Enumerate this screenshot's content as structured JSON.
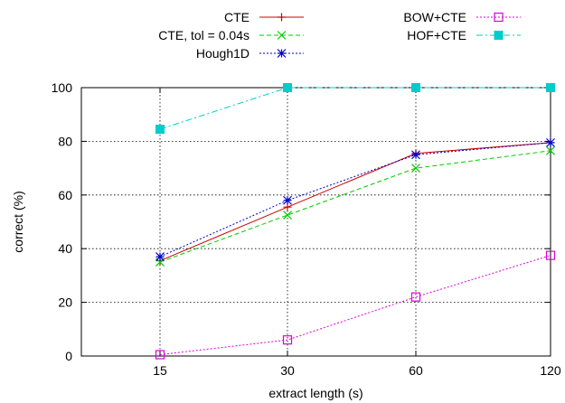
{
  "chart_data": {
    "type": "line",
    "title": "",
    "xlabel": "extract length (s)",
    "ylabel": "correct (%)",
    "categories": [
      "15",
      "30",
      "60",
      "120"
    ],
    "yticks": [
      0,
      20,
      40,
      60,
      80,
      100
    ],
    "ylim": [
      0,
      100
    ],
    "grid": true,
    "legend_position": "top, two columns",
    "series": [
      {
        "name": "CTE",
        "values": [
          35.5,
          55.5,
          75.5,
          79.5
        ],
        "color": "#cc0000",
        "dash": "solid",
        "marker": "plus"
      },
      {
        "name": "CTE, tol = 0.04s",
        "values": [
          35,
          52.5,
          70,
          76.5
        ],
        "color": "#00cc00",
        "dash": "dashed",
        "marker": "cross"
      },
      {
        "name": "Hough1D",
        "values": [
          37,
          58,
          75,
          79.5
        ],
        "color": "#0000cc",
        "dash": "dotted",
        "marker": "star"
      },
      {
        "name": "BOW+CTE",
        "values": [
          0.5,
          6,
          22,
          37.5
        ],
        "color": "#dd00dd",
        "dash": "dotted",
        "marker": "open-square"
      },
      {
        "name": "HOF+CTE",
        "values": [
          84.5,
          100,
          100,
          100
        ],
        "color": "#00cccc",
        "dash": "dash-dot",
        "marker": "filled-square"
      }
    ]
  }
}
